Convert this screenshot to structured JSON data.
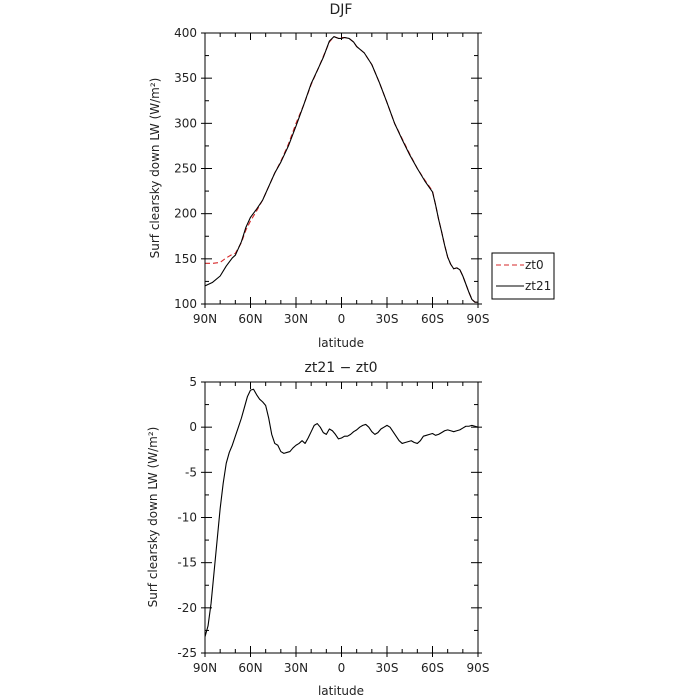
{
  "chart_data": [
    {
      "type": "line",
      "title": "DJF",
      "xlabel": "latitude",
      "ylabel": "Surf clearsky down LW (W/m²)",
      "xlim": [
        90,
        -90
      ],
      "ylim": [
        100,
        400
      ],
      "xticks": [
        {
          "value": 90,
          "label": "90N"
        },
        {
          "value": 60,
          "label": "60N"
        },
        {
          "value": 30,
          "label": "30N"
        },
        {
          "value": 0,
          "label": "0"
        },
        {
          "value": -30,
          "label": "30S"
        },
        {
          "value": -60,
          "label": "60S"
        },
        {
          "value": -90,
          "label": "90S"
        }
      ],
      "yticks": [
        100,
        150,
        200,
        250,
        300,
        350,
        400
      ],
      "grid": false,
      "legend_position": "right",
      "series": [
        {
          "name": "zt0",
          "color": "#d62728",
          "dash": "dashed",
          "x": [
            90,
            85,
            80,
            76,
            72,
            70,
            66,
            63,
            60,
            56,
            52,
            48,
            44,
            40,
            35,
            30,
            25,
            20,
            15,
            12,
            10,
            8,
            5,
            2,
            0,
            -2,
            -5,
            -8,
            -10,
            -15,
            -20,
            -25,
            -30,
            -35,
            -40,
            -45,
            -50,
            -55,
            -60,
            -62,
            -64,
            -66,
            -68,
            -70,
            -72,
            -74,
            -76,
            -78,
            -80,
            -82,
            -84,
            -86,
            -88,
            -90
          ],
          "y": [
            145,
            145,
            146,
            151,
            155,
            156,
            168,
            182,
            192,
            203,
            215,
            230,
            245,
            258,
            277,
            300,
            320,
            343,
            362,
            374,
            382,
            390,
            396,
            394,
            395,
            395,
            394,
            390,
            385,
            378,
            365,
            345,
            323,
            300,
            283,
            266,
            250,
            237,
            225,
            210,
            194,
            180,
            165,
            152,
            144,
            139,
            140,
            138,
            131,
            122,
            113,
            105,
            102,
            102
          ]
        },
        {
          "name": "zt21",
          "color": "#000000",
          "dash": "solid",
          "x": [
            90,
            85,
            80,
            76,
            72,
            70,
            66,
            63,
            60,
            56,
            52,
            48,
            44,
            40,
            35,
            30,
            25,
            20,
            15,
            12,
            10,
            8,
            5,
            2,
            0,
            -2,
            -5,
            -8,
            -10,
            -15,
            -20,
            -25,
            -30,
            -35,
            -40,
            -45,
            -50,
            -55,
            -60,
            -62,
            -64,
            -66,
            -68,
            -70,
            -72,
            -74,
            -76,
            -78,
            -80,
            -82,
            -84,
            -86,
            -88,
            -90
          ],
          "y": [
            120,
            124,
            131,
            142,
            151,
            154,
            169,
            185,
            196,
            205,
            215,
            230,
            245,
            257,
            275,
            297,
            320,
            344,
            362,
            373,
            382,
            391,
            396,
            394,
            394,
            395,
            394,
            390,
            385,
            378,
            365,
            345,
            323,
            300,
            282,
            265,
            250,
            236,
            224,
            210,
            194,
            180,
            165,
            152,
            144,
            139,
            140,
            138,
            131,
            122,
            113,
            105,
            102,
            102
          ]
        }
      ]
    },
    {
      "type": "line",
      "title": "zt21 − zt0",
      "xlabel": "latitude",
      "ylabel": "Surf clearsky down LW (W/m²)",
      "xlim": [
        90,
        -90
      ],
      "ylim": [
        -25,
        5
      ],
      "xticks": [
        {
          "value": 90,
          "label": "90N"
        },
        {
          "value": 60,
          "label": "60N"
        },
        {
          "value": 30,
          "label": "30N"
        },
        {
          "value": 0,
          "label": "0"
        },
        {
          "value": -30,
          "label": "30S"
        },
        {
          "value": -60,
          "label": "60S"
        },
        {
          "value": -90,
          "label": "90S"
        }
      ],
      "yticks": [
        5,
        0,
        -5,
        -10,
        -15,
        -20,
        -25
      ],
      "grid": false,
      "series": [
        {
          "color": "#000000",
          "dash": "solid",
          "x": [
            90,
            88,
            86,
            84,
            82,
            80,
            78,
            76,
            74,
            72,
            70,
            68,
            66,
            64,
            62,
            60,
            58,
            56,
            54,
            52,
            50,
            48,
            46,
            44,
            42,
            40,
            38,
            36,
            34,
            32,
            30,
            28,
            26,
            24,
            22,
            20,
            18,
            16,
            14,
            12,
            10,
            8,
            6,
            4,
            2,
            0,
            -2,
            -4,
            -6,
            -8,
            -10,
            -12,
            -14,
            -16,
            -18,
            -20,
            -22,
            -24,
            -26,
            -28,
            -30,
            -32,
            -34,
            -36,
            -38,
            -40,
            -42,
            -44,
            -46,
            -48,
            -50,
            -52,
            -54,
            -56,
            -58,
            -60,
            -62,
            -64,
            -66,
            -68,
            -70,
            -72,
            -74,
            -76,
            -78,
            -80,
            -82,
            -84,
            -86,
            -88,
            -90
          ],
          "y": [
            -23.2,
            -22.0,
            -19.5,
            -16.0,
            -12.5,
            -9.0,
            -6.2,
            -4.0,
            -2.8,
            -2.0,
            -1.0,
            0.0,
            1.0,
            2.2,
            3.4,
            4.1,
            4.2,
            3.6,
            3.1,
            2.8,
            2.4,
            1.0,
            -0.8,
            -1.8,
            -2.0,
            -2.7,
            -2.9,
            -2.8,
            -2.7,
            -2.3,
            -2.0,
            -1.8,
            -1.5,
            -1.8,
            -1.2,
            -0.5,
            0.2,
            0.4,
            0.0,
            -0.6,
            -0.8,
            -0.2,
            -0.4,
            -0.8,
            -1.3,
            -1.2,
            -1.0,
            -1.0,
            -0.8,
            -0.5,
            -0.3,
            0.0,
            0.2,
            0.3,
            0.0,
            -0.5,
            -0.8,
            -0.6,
            -0.2,
            0.0,
            0.2,
            0.0,
            -0.5,
            -1.0,
            -1.5,
            -1.8,
            -1.7,
            -1.6,
            -1.5,
            -1.7,
            -1.8,
            -1.5,
            -1.0,
            -0.9,
            -0.8,
            -0.7,
            -0.9,
            -0.8,
            -0.6,
            -0.4,
            -0.3,
            -0.4,
            -0.5,
            -0.4,
            -0.3,
            -0.1,
            0.1,
            0.1,
            0.2,
            0.1,
            0.0
          ]
        }
      ]
    }
  ]
}
